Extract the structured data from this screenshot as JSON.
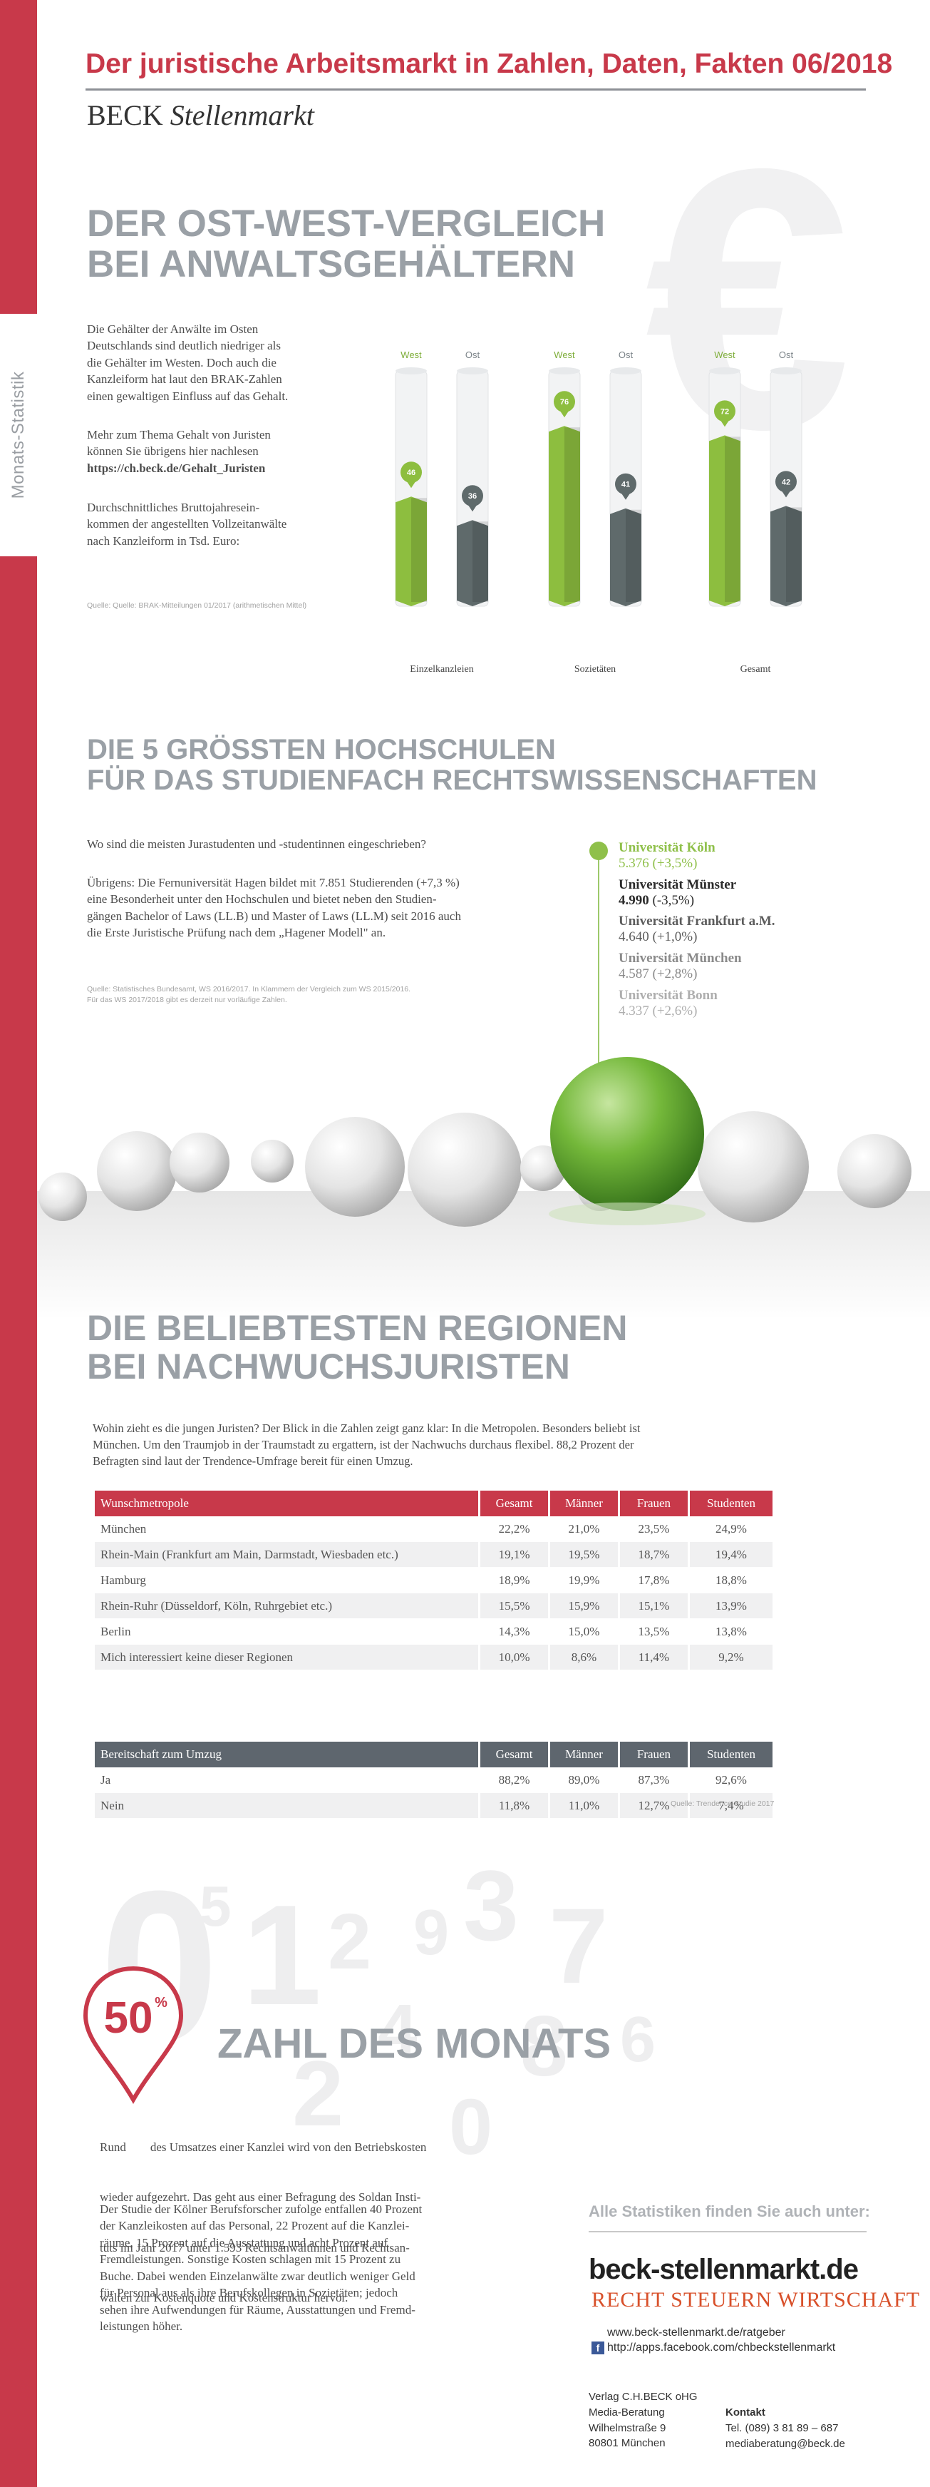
{
  "header": {
    "title": "Der juristische Arbeitsmarkt in Zahlen, Daten, Fakten 06/2018",
    "brand_regular": "BECK",
    "brand_italic": "Stellenmarkt"
  },
  "sidebar": {
    "label": "Monats-Statistik"
  },
  "watermark": {
    "euro_symbol": "€"
  },
  "section1": {
    "title_line1": "DER OST-WEST-VERGLEICH",
    "title_line2": "BEI ANWALTSGEHÄLTERN",
    "para1": [
      "Die Gehälter der Anwälte im Osten",
      "Deutschlands sind deutlich niedriger als",
      "die Gehälter im Westen. Doch auch die",
      "Kanzleiform hat laut den BRAK-Zahlen",
      "einen gewaltigen Einfluss auf das Gehalt."
    ],
    "para2": [
      "Mehr zum Thema Gehalt von Juristen",
      "können Sie übrigens hier nachlesen"
    ],
    "link": "https://ch.beck.de/Gehalt_Juristen",
    "para3": [
      "Durchschnittliches Bruttojahresein-",
      "kommen der angestellten Vollzeitanwälte",
      "nach Kanzleiform in Tsd. Euro:"
    ],
    "source": "Quelle: Quelle: BRAK-Mitteilungen 01/2017 (arithmetischen Mittel)"
  },
  "chart_data": {
    "type": "bar",
    "categories": [
      "Einzelkanzleien",
      "Sozietäten",
      "Gesamt"
    ],
    "series": [
      {
        "name": "West",
        "values": [
          46,
          76,
          72
        ],
        "color": "#8dbe3f"
      },
      {
        "name": "Ost",
        "values": [
          36,
          41,
          42
        ],
        "color": "#5f6a6b"
      }
    ],
    "title": "",
    "xlabel": "",
    "ylabel": "",
    "ylim": [
      0,
      100
    ],
    "grid": false,
    "legend": "above-each-bar"
  },
  "section2": {
    "title_line1": "DIE 5 GRÖSSTEN HOCHSCHULEN",
    "title_line2": "FÜR DAS STUDIENFACH RECHTSWISSENSCHAFTEN",
    "para1": "Wo sind die meisten Jurastudenten und -studentinnen eingeschrieben?",
    "para2": [
      "Übrigens: Die Fernuniversität Hagen bildet mit 7.851 Studierenden (+7,3 %)",
      "eine Besonderheit unter den Hochschulen und bietet neben den Studien-",
      "gängen Bachelor of Laws (LL.B) und Master of Laws (LL.M) seit 2016 auch",
      "die Erste Juristische Prüfung nach dem „Hagener Modell\" an."
    ],
    "source": [
      "Quelle: Statistisches Bundesamt, WS 2016/2017. In Klammern der Vergleich zum WS 2015/2016.",
      "Für das WS 2017/2018 gibt es derzeit nur vorläufige Zahlen."
    ],
    "universities": [
      {
        "name": "Universität Köln",
        "value": "5.376",
        "change": "(+3,5%)",
        "color": "#8fc04a"
      },
      {
        "name": "Universität Münster",
        "value": "4.990",
        "change": "(-3,5%)",
        "color": "#2b2b2b"
      },
      {
        "name": "Universität Frankfurt a.M.",
        "value": "4.640",
        "change": "(+1,0%)",
        "color": "#5c5c5c"
      },
      {
        "name": "Universität München",
        "value": "4.587",
        "change": "(+2,8%)",
        "color": "#8a8a8a"
      },
      {
        "name": "Universität Bonn",
        "value": "4.337",
        "change": "(+2,6%)",
        "color": "#aeaeae"
      }
    ]
  },
  "section3": {
    "title_line1": "DIE BELIEBTESTEN REGIONEN",
    "title_line2": "BEI NACHWUCHSJURISTEN",
    "para": [
      "Wohin zieht es die jungen Juristen? Der Blick in die Zahlen zeigt ganz klar: In die Metropolen. Besonders beliebt ist",
      "München. Um den Traumjob in der Traumstadt zu ergattern, ist der Nachwuchs durchaus flexibel. 88,2 Prozent der",
      "Befragten sind laut der Trendence-Umfrage bereit für einen Umzug."
    ],
    "regions_table": {
      "headers": [
        "Wunschmetropole",
        "Gesamt",
        "Männer",
        "Frauen",
        "Studenten"
      ],
      "rows": [
        [
          "München",
          "22,2%",
          "21,0%",
          "23,5%",
          "24,9%"
        ],
        [
          "Rhein-Main (Frankfurt am Main, Darmstadt, Wiesbaden etc.)",
          "19,1%",
          "19,5%",
          "18,7%",
          "19,4%"
        ],
        [
          "Hamburg",
          "18,9%",
          "19,9%",
          "17,8%",
          "18,8%"
        ],
        [
          "Rhein-Ruhr (Düsseldorf, Köln, Ruhrgebiet etc.)",
          "15,5%",
          "15,9%",
          "15,1%",
          "13,9%"
        ],
        [
          "Berlin",
          "14,3%",
          "15,0%",
          "13,5%",
          "13,8%"
        ],
        [
          "Mich interessiert keine dieser Regionen",
          "10,0%",
          "8,6%",
          "11,4%",
          "9,2%"
        ]
      ]
    },
    "moving_table": {
      "headers": [
        "Bereitschaft zum Umzug",
        "Gesamt",
        "Männer",
        "Frauen",
        "Studenten"
      ],
      "rows": [
        [
          "Ja",
          "88,2%",
          "89,0%",
          "87,3%",
          "92,6%"
        ],
        [
          "Nein",
          "11,8%",
          "11,0%",
          "12,7%",
          "7,4%"
        ]
      ]
    },
    "source": "Quelle: Trendence-Studie 2017"
  },
  "section4": {
    "pin_value": "50",
    "pin_unit": "%",
    "title": "ZAHL DES MONATS",
    "para1": [
      "Rund        des Umsatzes einer Kanzlei wird von den Betriebskosten",
      "wieder aufgezehrt. Das geht aus einer Befragung des Soldan Insti-",
      "tuts im Jahr 2017 unter 1.593 Rechtsanwältinnen und Rechtsan-",
      "wälten zur Kostenquote und Kostenstruktur hervor."
    ],
    "para2": [
      "Der Studie der Kölner Berufsforscher zufolge entfallen 40 Prozent",
      "der Kanzleikosten auf das Personal, 22 Prozent auf die Kanzlei-",
      "räume, 15 Prozent auf die Ausstattung und acht Prozent auf",
      "Fremdleistungen. Sonstige Kosten schlagen mit 15 Prozent zu",
      "Buche. Dabei wenden Einzelanwälte zwar deutlich weniger Geld",
      "für Personal aus als ihre Berufskollegen in Sozietäten; jedoch",
      "sehen ihre Aufwendungen für Räume, Ausstattungen und Fremd-",
      "leistungen höher."
    ]
  },
  "footer": {
    "all_stats": "Alle Statistiken finden Sie auch unter:",
    "logo": "beck-stellenmarkt.de",
    "tagline": "RECHT STEUERN WIRTSCHAFT",
    "link1": "www.beck-stellenmarkt.de/ratgeber",
    "link2": "http://apps.facebook.com/chbeckstellenmarkt",
    "publisher": [
      "Verlag C.H.BECK oHG",
      "Media-Beratung",
      "Wilhelmstraße 9",
      "80801 München"
    ],
    "contact_label": "Kontakt",
    "contact": [
      "Tel. (089) 3 81 89 – 687",
      "mediaberatung@beck.de"
    ]
  }
}
